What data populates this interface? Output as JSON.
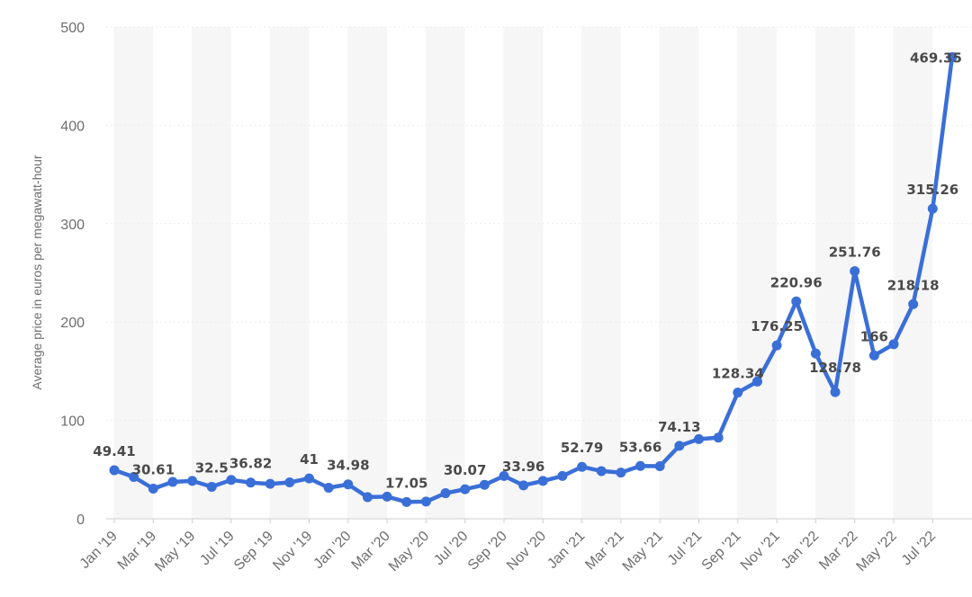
{
  "chart_data": {
    "type": "line",
    "title": "",
    "xlabel": "",
    "ylabel": "Average price in euros per megawatt-hour",
    "ylim": [
      0,
      500
    ],
    "yticks": [
      0,
      100,
      200,
      300,
      400,
      500
    ],
    "grid": "alternating-vertical-bands",
    "color": "#3a6fd8",
    "x": [
      "Jan '19",
      "Feb '19",
      "Mar '19",
      "Apr '19",
      "May '19",
      "Jun '19",
      "Jul '19",
      "Aug '19",
      "Sep '19",
      "Oct '19",
      "Nov '19",
      "Dec '19",
      "Jan '20",
      "Feb '20",
      "Mar '20",
      "Apr '20",
      "May '20",
      "Jun '20",
      "Jul '20",
      "Aug '20",
      "Sep '20",
      "Oct '20",
      "Nov '20",
      "Dec '20",
      "Jan '21",
      "Feb '21",
      "Mar '21",
      "Apr '21",
      "May '21",
      "Jun '21",
      "Jul '21",
      "Aug '21",
      "Sep '21",
      "Oct '21",
      "Nov '21",
      "Dec '21",
      "Jan '22",
      "Feb '22",
      "Mar '22",
      "Apr '22",
      "May '22",
      "Jun '22",
      "Jul '22",
      "Aug '22"
    ],
    "xtick_labels": [
      "Jan '19",
      "Mar '19",
      "May '19",
      "Jul '19",
      "Sep '19",
      "Nov '19",
      "Jan '20",
      "Mar '20",
      "May '20",
      "Jul '20",
      "Sep '20",
      "Nov '20",
      "Jan '21",
      "Mar '21",
      "May '21",
      "Jul '21",
      "Sep '21",
      "Nov '21",
      "Jan '22",
      "Mar '22",
      "May '22",
      "Jul '22"
    ],
    "series": [
      {
        "values": [
          49.41,
          42.5,
          30.61,
          37.5,
          38.5,
          32.5,
          39.5,
          36.82,
          35.5,
          37.0,
          41,
          31.5,
          34.98,
          22.0,
          22.5,
          17.05,
          17.5,
          26.0,
          30.07,
          34.5,
          43.5,
          33.96,
          38.5,
          43.5,
          52.79,
          48.5,
          47.0,
          53.66,
          53.5,
          74.13,
          81.0,
          82.5,
          128.34,
          139.5,
          176.25,
          220.96,
          168.0,
          128.78,
          251.76,
          166,
          177.5,
          218.18,
          315.26,
          469.35
        ]
      }
    ],
    "data_labels": [
      {
        "index": 0,
        "text": "49.41"
      },
      {
        "index": 2,
        "text": "30.61"
      },
      {
        "index": 5,
        "text": "32.5"
      },
      {
        "index": 7,
        "text": "36.82"
      },
      {
        "index": 10,
        "text": "41"
      },
      {
        "index": 12,
        "text": "34.98"
      },
      {
        "index": 15,
        "text": "17.05"
      },
      {
        "index": 18,
        "text": "30.07"
      },
      {
        "index": 21,
        "text": "33.96"
      },
      {
        "index": 24,
        "text": "52.79"
      },
      {
        "index": 27,
        "text": "53.66"
      },
      {
        "index": 29,
        "text": "74.13"
      },
      {
        "index": 32,
        "text": "128.34"
      },
      {
        "index": 34,
        "text": "176.25"
      },
      {
        "index": 35,
        "text": "220.96"
      },
      {
        "index": 37,
        "text": "128.78"
      },
      {
        "index": 38,
        "text": "251.76"
      },
      {
        "index": 39,
        "text": "166"
      },
      {
        "index": 41,
        "text": "218.18"
      },
      {
        "index": 42,
        "text": "315.26"
      },
      {
        "index": 43,
        "text": "469.35"
      }
    ]
  }
}
